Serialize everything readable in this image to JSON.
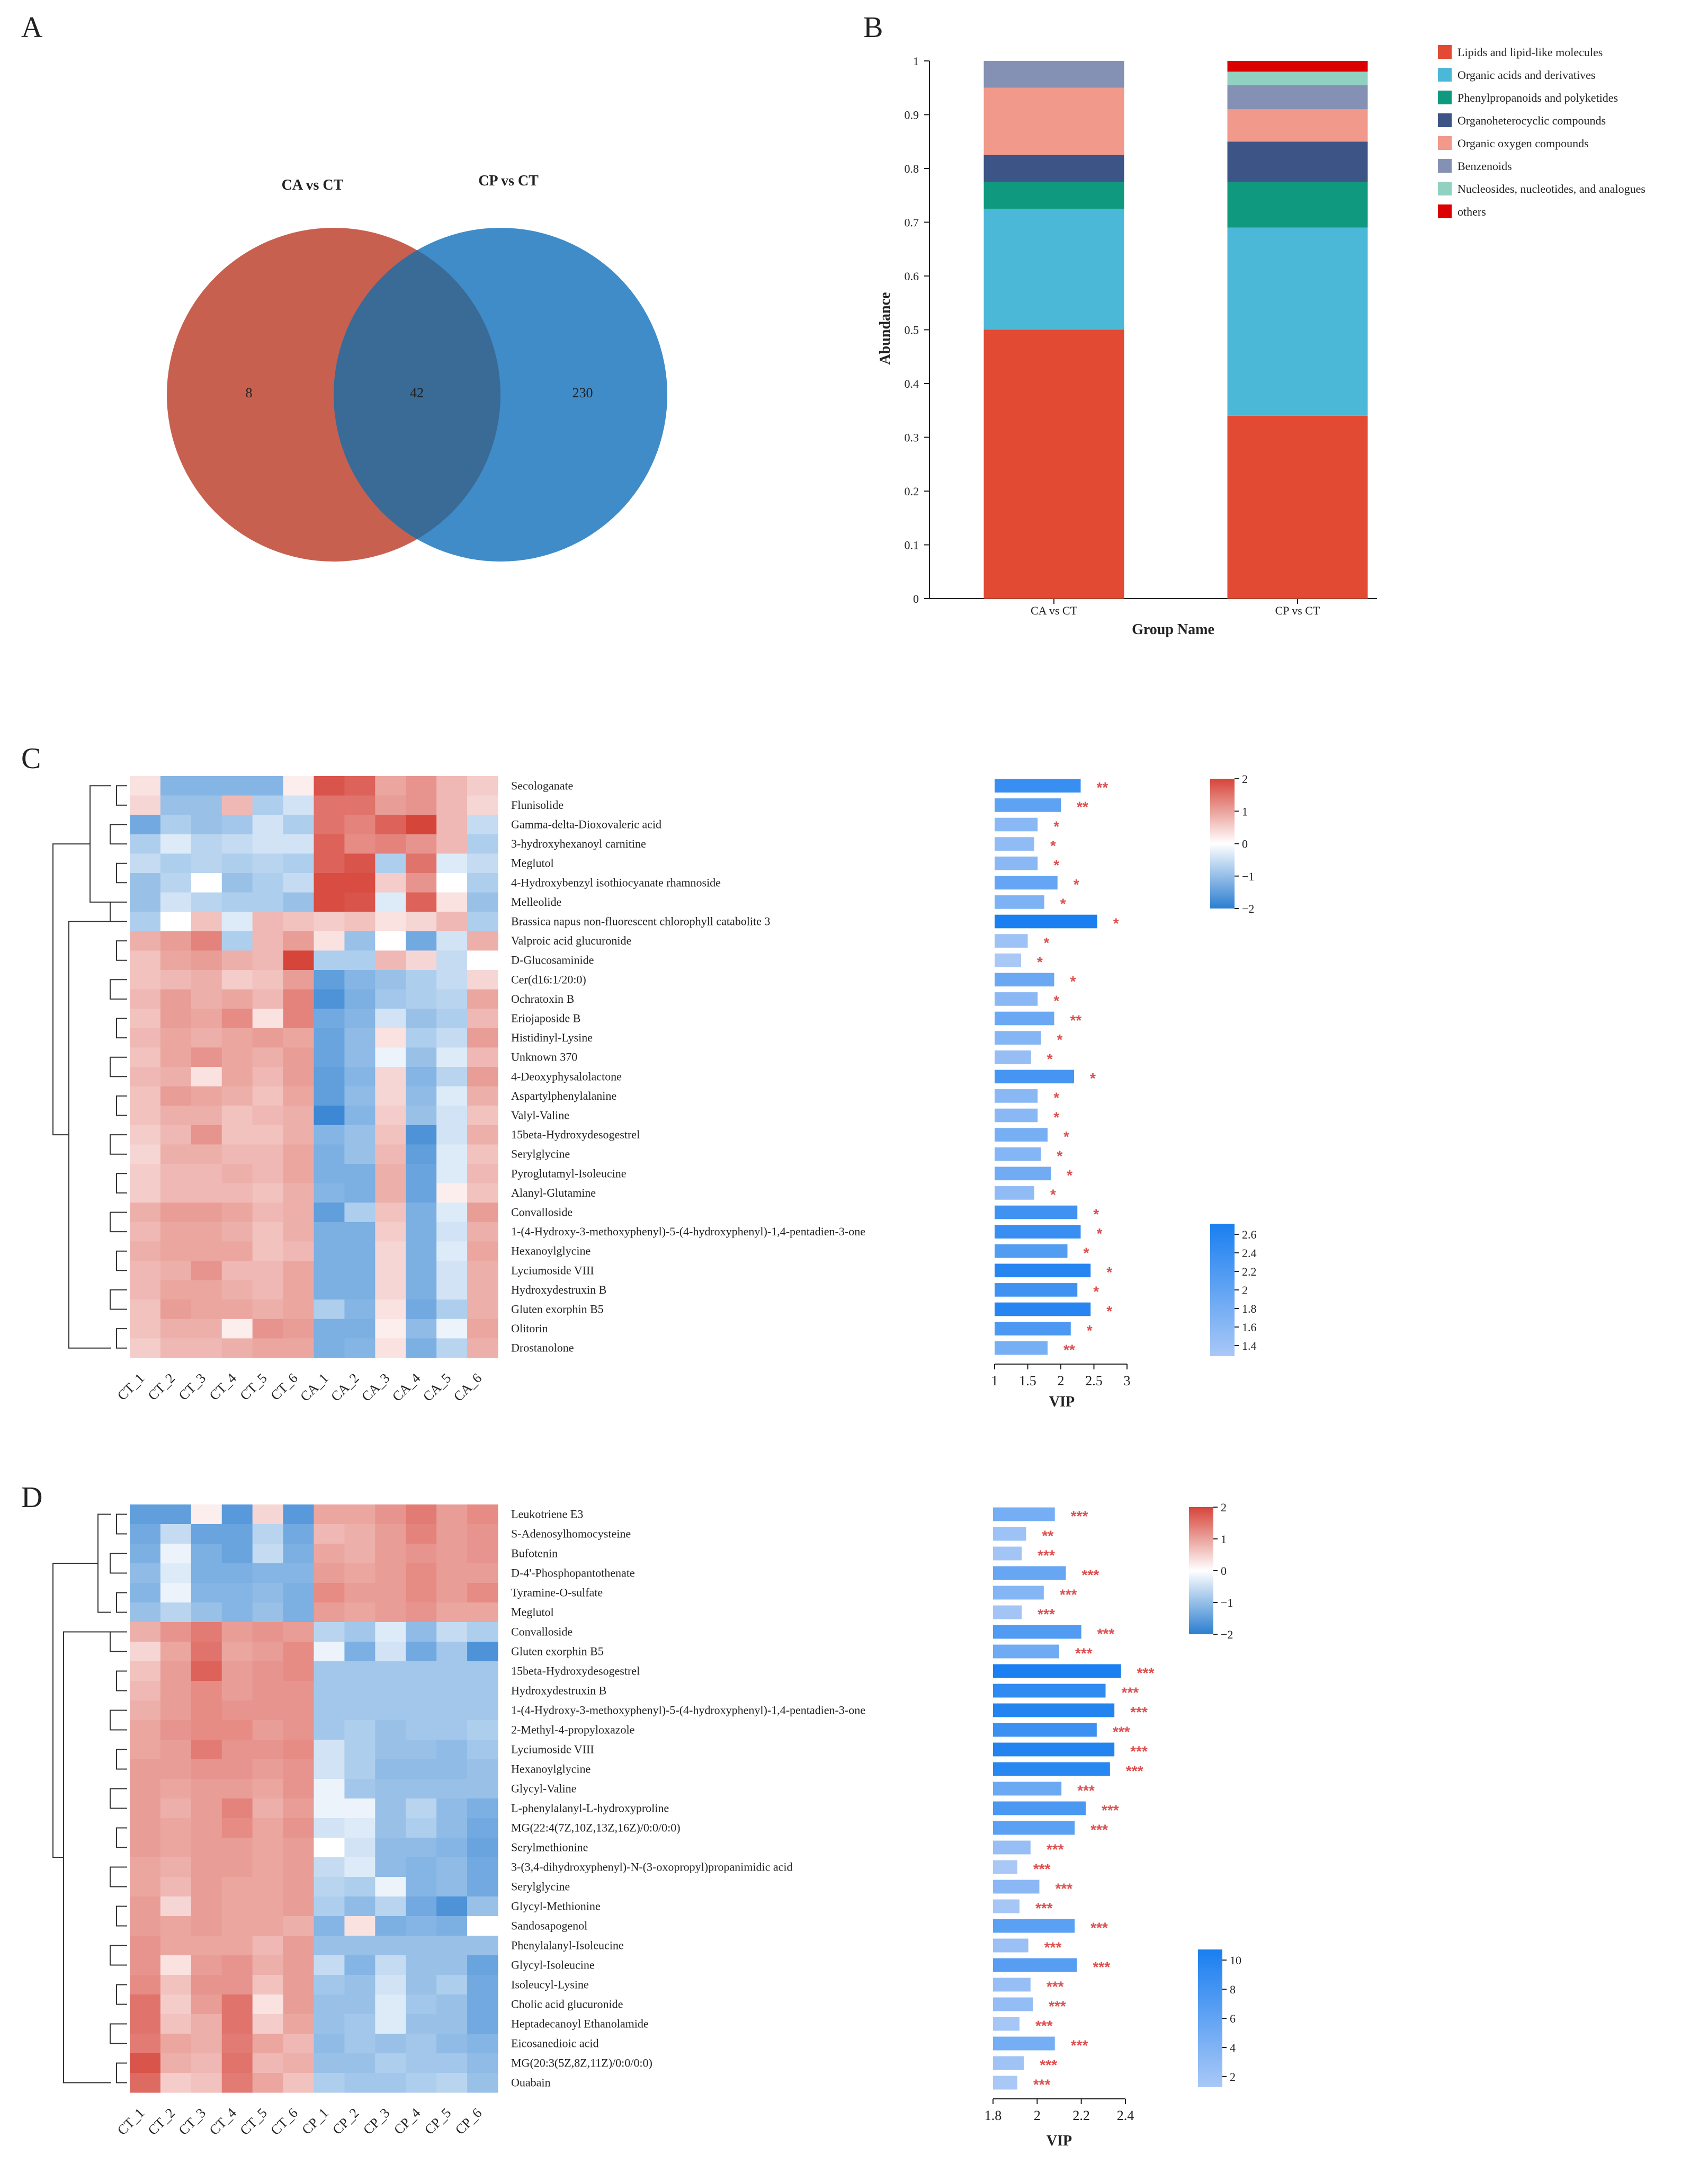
{
  "panels": {
    "a": "A",
    "b": "B",
    "c": "C",
    "d": "D"
  },
  "chart_data": [
    {
      "panel": "A",
      "type": "venn",
      "sets": [
        {
          "name": "CA vs CT",
          "only": 8,
          "color": "#c8604f"
        },
        {
          "name": "CP vs CT",
          "only": 230,
          "color": "#3f8cc8"
        }
      ],
      "intersection": 42
    },
    {
      "panel": "B",
      "type": "bar",
      "stacked": true,
      "categories": [
        "CA vs CT",
        "CP vs CT"
      ],
      "xlabel": "Group Name",
      "ylabel": "Abundance",
      "ylim": [
        0,
        1
      ],
      "yticks": [
        "0",
        "0.1",
        "0.2",
        "0.3",
        "0.4",
        "0.5",
        "0.6",
        "0.7",
        "0.8",
        "0.9",
        "1"
      ],
      "series": [
        {
          "name": "Lipids and lipid-like molecules",
          "color": "#e24a33",
          "values": [
            0.5,
            0.34
          ]
        },
        {
          "name": "Organic acids and derivatives",
          "color": "#4cb8d8",
          "values": [
            0.225,
            0.35
          ]
        },
        {
          "name": "Phenylpropanoids and polyketides",
          "color": "#0f9a80",
          "values": [
            0.05,
            0.085
          ]
        },
        {
          "name": "Organoheterocyclic compounds",
          "color": "#3c5486",
          "values": [
            0.05,
            0.075
          ]
        },
        {
          "name": "Organic oxygen compounds",
          "color": "#f1998a",
          "values": [
            0.125,
            0.06
          ]
        },
        {
          "name": "Benzenoids",
          "color": "#8491b4",
          "values": [
            0.05,
            0.045
          ]
        },
        {
          "name": "Nucleosides, nucleotides, and analogues",
          "color": "#91d1c2",
          "values": [
            0,
            0.025
          ]
        },
        {
          "name": "others",
          "color": "#dc0000",
          "values": [
            0,
            0.02
          ]
        }
      ]
    },
    {
      "panel": "C",
      "type": "heatmap",
      "columns": [
        "CT_1",
        "CT_2",
        "CT_3",
        "CT_4",
        "CT_5",
        "CT_6",
        "CA_1",
        "CA_2",
        "CA_3",
        "CA_4",
        "CA_5",
        "CA_6"
      ],
      "rows": [
        "Secologanate",
        "Flunisolide",
        "Gamma-delta-Dioxovaleric acid",
        "3-hydroxyhexanoyl carnitine",
        "Meglutol",
        "4-Hydroxybenzyl isothiocyanate rhamnoside",
        "Melleolide",
        "Brassica napus non-fluorescent chlorophyll catabolite 3",
        "Valproic acid glucuronide",
        "D-Glucosaminide",
        "Cer(d16:1/20:0)",
        "Ochratoxin B",
        "Eriojaposide B",
        "Histidinyl-Lysine",
        "Unknown 370",
        "4-Deoxyphysalolactone",
        "Aspartylphenylalanine",
        "Valyl-Valine",
        "15beta-Hydroxydesogestrel",
        "Serylglycine",
        "Pyroglutamyl-Isoleucine",
        "Alanyl-Glutamine",
        "Convalloside",
        "1-(4-Hydroxy-3-methoxyphenyl)-5-(4-hydroxyphenyl)-1,4-pentadien-3-one",
        "Hexanoylglycine",
        "Lyciumoside VIII",
        "Hydroxydestruxin B",
        "Gluten exorphin B5",
        "Olitorin",
        "Drostanolone"
      ],
      "values": [
        [
          0.2,
          -1.0,
          -1.0,
          -1.0,
          -1.0,
          0.1,
          1.8,
          1.6,
          0.8,
          1.0,
          0.6,
          0.4
        ],
        [
          0.3,
          -0.8,
          -0.8,
          0.6,
          -0.6,
          -0.3,
          1.4,
          1.4,
          0.9,
          1.0,
          0.6,
          0.3
        ],
        [
          -1.2,
          -0.6,
          -0.8,
          -0.7,
          -0.3,
          -0.6,
          1.4,
          1.2,
          1.6,
          2.0,
          0.6,
          -0.4
        ],
        [
          -0.6,
          -0.2,
          -0.5,
          -0.4,
          -0.3,
          -0.3,
          1.6,
          1.1,
          1.2,
          1.0,
          0.6,
          -0.6
        ],
        [
          -0.4,
          -0.6,
          -0.5,
          -0.6,
          -0.5,
          -0.6,
          1.6,
          1.8,
          -0.6,
          1.4,
          -0.2,
          -0.4
        ],
        [
          -0.8,
          -0.5,
          0.0,
          -0.8,
          -0.6,
          -0.4,
          1.9,
          1.9,
          0.4,
          1.0,
          0.0,
          -0.6
        ],
        [
          -0.8,
          -0.3,
          -0.5,
          -0.6,
          -0.6,
          -0.8,
          1.9,
          1.8,
          -0.2,
          1.6,
          0.2,
          -0.8
        ],
        [
          -0.6,
          0.0,
          0.5,
          -0.2,
          0.6,
          0.5,
          0.4,
          0.5,
          0.2,
          0.3,
          0.6,
          -0.6
        ],
        [
          0.7,
          0.9,
          1.2,
          -0.6,
          0.6,
          0.9,
          0.2,
          -0.8,
          0.0,
          -1.2,
          -0.3,
          0.7
        ],
        [
          0.5,
          0.8,
          0.9,
          0.7,
          0.6,
          2.3,
          -0.6,
          -0.6,
          0.6,
          0.3,
          -0.4,
          0.0
        ],
        [
          0.5,
          0.6,
          0.7,
          0.4,
          0.5,
          0.9,
          -1.4,
          -1.0,
          -0.8,
          -0.6,
          -0.4,
          0.3
        ],
        [
          0.6,
          0.9,
          0.7,
          0.8,
          0.6,
          1.2,
          -1.6,
          -1.1,
          -0.7,
          -0.6,
          -0.5,
          0.8
        ],
        [
          0.5,
          0.9,
          0.8,
          1.1,
          0.2,
          1.2,
          -1.2,
          -1.0,
          -0.3,
          -0.8,
          -0.6,
          0.6
        ],
        [
          0.6,
          0.8,
          0.7,
          0.8,
          0.9,
          0.8,
          -1.3,
          -0.9,
          0.2,
          -0.6,
          -0.4,
          0.9
        ],
        [
          0.5,
          0.8,
          1.0,
          0.8,
          0.7,
          0.9,
          -1.3,
          -0.9,
          -0.1,
          -0.8,
          -0.2,
          0.6
        ],
        [
          0.6,
          0.7,
          0.2,
          0.8,
          0.6,
          0.9,
          -1.4,
          -1.0,
          0.3,
          -1.0,
          -0.5,
          0.9
        ],
        [
          0.5,
          0.9,
          0.8,
          0.7,
          0.5,
          0.8,
          -1.4,
          -0.9,
          0.3,
          -0.9,
          -0.2,
          0.7
        ],
        [
          0.5,
          0.7,
          0.7,
          0.5,
          0.6,
          0.7,
          -1.8,
          -1.0,
          0.4,
          -0.8,
          -0.3,
          0.5
        ],
        [
          0.4,
          0.6,
          1.0,
          0.5,
          0.5,
          0.7,
          -1.0,
          -0.8,
          0.5,
          -1.6,
          -0.3,
          0.7
        ],
        [
          0.3,
          0.7,
          0.7,
          0.6,
          0.6,
          0.8,
          -1.1,
          -0.8,
          0.6,
          -1.4,
          -0.2,
          0.5
        ],
        [
          0.4,
          0.6,
          0.6,
          0.7,
          0.6,
          0.8,
          -1.1,
          -1.1,
          0.7,
          -1.3,
          -0.2,
          0.6
        ],
        [
          0.4,
          0.6,
          0.6,
          0.6,
          0.5,
          0.7,
          -1.0,
          -1.1,
          0.7,
          -1.3,
          0.1,
          0.5
        ],
        [
          0.7,
          0.9,
          0.9,
          0.8,
          0.6,
          0.7,
          -1.4,
          -0.6,
          0.5,
          -1.1,
          -0.2,
          0.9
        ],
        [
          0.6,
          0.8,
          0.8,
          0.7,
          0.5,
          0.7,
          -1.1,
          -1.1,
          0.4,
          -1.1,
          -0.3,
          0.7
        ],
        [
          0.7,
          0.8,
          0.8,
          0.8,
          0.5,
          0.6,
          -1.1,
          -1.1,
          0.3,
          -1.1,
          -0.2,
          0.8
        ],
        [
          0.6,
          0.7,
          1.0,
          0.6,
          0.6,
          0.8,
          -1.1,
          -1.1,
          0.3,
          -1.1,
          -0.3,
          0.7
        ],
        [
          0.6,
          0.8,
          0.8,
          0.7,
          0.6,
          0.8,
          -1.1,
          -1.1,
          0.3,
          -1.1,
          -0.3,
          0.7
        ],
        [
          0.5,
          0.9,
          0.8,
          0.8,
          0.7,
          0.8,
          -0.6,
          -1.0,
          0.2,
          -1.2,
          -0.6,
          0.7
        ],
        [
          0.5,
          0.7,
          0.7,
          0.1,
          1.0,
          0.9,
          -1.1,
          -1.1,
          0.1,
          -0.9,
          -0.1,
          0.8
        ],
        [
          0.4,
          0.6,
          0.6,
          0.7,
          0.8,
          0.8,
          -1.1,
          -1.0,
          0.2,
          -1.1,
          -0.5,
          0.7
        ]
      ],
      "color_scale": {
        "min": -2,
        "max": 2,
        "ticks": [
          "2",
          "1",
          "0",
          "−1",
          "−2"
        ]
      },
      "vip": [
        2.3,
        2.0,
        1.65,
        1.6,
        1.65,
        1.95,
        1.75,
        2.55,
        1.5,
        1.4,
        1.9,
        1.65,
        1.9,
        1.7,
        1.55,
        2.2,
        1.65,
        1.65,
        1.8,
        1.7,
        1.85,
        1.6,
        2.25,
        2.3,
        2.1,
        2.45,
        2.25,
        2.45,
        2.15,
        1.8
      ],
      "significance": [
        "**",
        "**",
        "*",
        "*",
        "*",
        "*",
        "*",
        "*",
        "*",
        "*",
        "*",
        "*",
        "**",
        "*",
        "*",
        "*",
        "*",
        "*",
        "*",
        "*",
        "*",
        "*",
        "*",
        "*",
        "*",
        "*",
        "*",
        "*",
        "*",
        "**"
      ],
      "vip_axis": {
        "label": "VIP",
        "min": 1,
        "max": 3,
        "ticks": [
          "1",
          "1.5",
          "2",
          "2.5",
          "3"
        ]
      },
      "vip_scale": {
        "ticks": [
          "2.6",
          "2.4",
          "2.2",
          "2",
          "1.8",
          "1.6",
          "1.4"
        ]
      }
    },
    {
      "panel": "D",
      "type": "heatmap",
      "columns": [
        "CT_1",
        "CT_2",
        "CT_3",
        "CT_4",
        "CT_5",
        "CT_6",
        "CP_1",
        "CP_2",
        "CP_3",
        "CP_4",
        "CP_5",
        "CP_6"
      ],
      "rows": [
        "Leukotriene E3",
        "S-Adenosylhomocysteine",
        "Bufotenin",
        "D-4'-Phosphopantothenate",
        "Tyramine-O-sulfate",
        "Meglutol",
        "Convalloside",
        "Gluten exorphin B5",
        "15beta-Hydroxydesogestrel",
        "Hydroxydestruxin B",
        "1-(4-Hydroxy-3-methoxyphenyl)-5-(4-hydroxyphenyl)-1,4-pentadien-3-one",
        "2-Methyl-4-propyloxazole",
        "Lyciumoside VIII",
        "Hexanoylglycine",
        "Glycyl-Valine",
        "L-phenylalanyl-L-hydroxyproline",
        "MG(22:4(7Z,10Z,13Z,16Z)/0:0/0:0)",
        "Serylmethionine",
        "3-(3,4-dihydroxyphenyl)-N-(3-oxopropyl)propanimidic acid",
        "Serylglycine",
        "Glycyl-Methionine",
        "Sandosapogenol",
        "Phenylalanyl-Isoleucine",
        "Glycyl-Isoleucine",
        "Isoleucyl-Lysine",
        "Cholic acid glucuronide",
        "Heptadecanoyl Ethanolamide",
        "Eicosanedioic acid",
        "MG(20:3(5Z,8Z,11Z)/0:0/0:0)",
        "Ouabain"
      ],
      "values": [
        [
          -1.4,
          -1.4,
          0.1,
          -1.5,
          0.3,
          -1.5,
          0.8,
          0.8,
          1.0,
          1.3,
          0.9,
          1.1
        ],
        [
          -1.2,
          -0.4,
          -1.3,
          -1.3,
          -0.5,
          -1.2,
          0.6,
          0.7,
          0.9,
          1.2,
          0.9,
          1.0
        ],
        [
          -1.1,
          -0.1,
          -1.1,
          -1.3,
          -0.4,
          -1.1,
          0.8,
          0.7,
          0.9,
          1.0,
          0.9,
          1.0
        ],
        [
          -0.9,
          -0.2,
          -1.1,
          -1.1,
          -1.0,
          -1.0,
          0.9,
          0.8,
          0.9,
          1.1,
          0.9,
          0.9
        ],
        [
          -1.0,
          -0.1,
          -1.0,
          -1.0,
          -0.9,
          -1.1,
          1.1,
          0.9,
          0.9,
          1.1,
          0.9,
          1.1
        ],
        [
          -0.8,
          -0.5,
          -0.8,
          -1.0,
          -0.8,
          -1.1,
          0.9,
          0.8,
          0.9,
          1.0,
          0.8,
          0.8
        ],
        [
          0.7,
          1.0,
          1.3,
          0.9,
          1.0,
          0.9,
          -0.5,
          -0.7,
          -0.2,
          -0.9,
          -0.4,
          -0.6
        ],
        [
          0.3,
          0.8,
          1.4,
          0.8,
          0.9,
          1.1,
          -0.1,
          -1.1,
          -0.3,
          -1.2,
          -0.7,
          -1.6
        ],
        [
          0.5,
          0.9,
          1.6,
          0.9,
          1.0,
          1.1,
          -0.7,
          -0.7,
          -0.7,
          -0.7,
          -0.7,
          -0.7
        ],
        [
          0.6,
          0.9,
          1.1,
          0.9,
          1.0,
          1.0,
          -0.7,
          -0.7,
          -0.7,
          -0.7,
          -0.7,
          -0.7
        ],
        [
          0.7,
          0.9,
          1.1,
          1.0,
          1.0,
          1.0,
          -0.7,
          -0.7,
          -0.7,
          -0.7,
          -0.7,
          -0.7
        ],
        [
          0.8,
          1.0,
          1.1,
          1.1,
          0.9,
          1.0,
          -0.7,
          -0.6,
          -0.8,
          -0.7,
          -0.7,
          -0.6
        ],
        [
          0.8,
          0.9,
          1.3,
          1.0,
          1.0,
          1.1,
          -0.3,
          -0.6,
          -0.8,
          -0.8,
          -0.9,
          -0.7
        ],
        [
          0.9,
          0.9,
          1.0,
          1.0,
          0.9,
          1.0,
          -0.3,
          -0.6,
          -0.9,
          -0.9,
          -0.9,
          -0.8
        ],
        [
          0.9,
          0.8,
          0.9,
          0.9,
          0.8,
          1.0,
          -0.1,
          -0.7,
          -0.8,
          -0.8,
          -0.8,
          -0.8
        ],
        [
          0.9,
          0.7,
          0.9,
          1.2,
          0.7,
          0.9,
          -0.1,
          -0.1,
          -0.8,
          -0.5,
          -0.9,
          -1.1
        ],
        [
          0.9,
          0.8,
          0.9,
          1.1,
          0.8,
          1.0,
          -0.3,
          -0.2,
          -0.8,
          -0.6,
          -0.9,
          -1.2
        ],
        [
          0.9,
          0.8,
          0.9,
          0.9,
          0.8,
          0.9,
          0.0,
          -0.3,
          -0.9,
          -0.9,
          -1.0,
          -1.3
        ],
        [
          0.8,
          0.7,
          0.9,
          0.9,
          0.8,
          0.9,
          -0.4,
          -0.2,
          -0.9,
          -1.0,
          -0.9,
          -1.2
        ],
        [
          0.8,
          0.6,
          0.9,
          0.8,
          0.8,
          0.9,
          -0.5,
          -0.6,
          -0.1,
          -1.0,
          -0.9,
          -1.2
        ],
        [
          0.9,
          0.3,
          0.9,
          0.8,
          0.8,
          0.9,
          -0.6,
          -0.9,
          -0.5,
          -1.2,
          -1.6,
          -0.8
        ],
        [
          0.9,
          0.8,
          0.9,
          0.8,
          0.8,
          0.7,
          -1.0,
          0.2,
          -1.1,
          -1.0,
          -1.1,
          0.0
        ],
        [
          1.0,
          0.8,
          0.8,
          0.8,
          0.6,
          0.9,
          -0.8,
          -0.8,
          -0.8,
          -0.8,
          -0.8,
          -0.8
        ],
        [
          1.0,
          0.2,
          0.9,
          1.0,
          0.7,
          0.9,
          -0.4,
          -1.0,
          -0.4,
          -0.8,
          -0.8,
          -1.3
        ],
        [
          1.1,
          0.5,
          1.0,
          1.0,
          0.5,
          0.9,
          -0.7,
          -0.8,
          -0.3,
          -0.8,
          -0.6,
          -1.2
        ],
        [
          1.4,
          0.4,
          0.9,
          1.4,
          0.2,
          0.9,
          -0.8,
          -0.8,
          -0.2,
          -0.7,
          -0.8,
          -1.2
        ],
        [
          1.4,
          0.5,
          0.7,
          1.4,
          0.4,
          0.8,
          -0.8,
          -0.7,
          -0.2,
          -0.8,
          -0.8,
          -1.2
        ],
        [
          1.3,
          0.8,
          0.7,
          1.3,
          0.8,
          0.6,
          -0.9,
          -0.7,
          -0.8,
          -0.7,
          -0.9,
          -1.0
        ],
        [
          1.8,
          0.7,
          0.6,
          1.4,
          0.6,
          0.7,
          -0.8,
          -0.8,
          -0.6,
          -0.7,
          -0.7,
          -0.9
        ],
        [
          1.5,
          0.4,
          0.5,
          1.3,
          0.8,
          0.5,
          -0.6,
          -0.7,
          -0.7,
          -0.6,
          -0.5,
          -0.8
        ]
      ],
      "color_scale": {
        "min": -2,
        "max": 2,
        "ticks": [
          "2",
          "1",
          "0",
          "−1",
          "−2"
        ]
      },
      "vip": [
        2.08,
        1.95,
        1.93,
        2.13,
        2.03,
        1.93,
        2.2,
        2.1,
        2.38,
        2.31,
        2.35,
        2.27,
        2.35,
        2.33,
        2.11,
        2.22,
        2.17,
        1.97,
        1.91,
        2.01,
        1.92,
        2.17,
        1.96,
        2.18,
        1.97,
        1.98,
        1.92,
        2.08,
        1.94,
        1.91
      ],
      "significance": [
        "***",
        "**",
        "***",
        "***",
        "***",
        "***",
        "***",
        "***",
        "***",
        "***",
        "***",
        "***",
        "***",
        "***",
        "***",
        "***",
        "***",
        "***",
        "***",
        "***",
        "***",
        "***",
        "***",
        "***",
        "***",
        "***",
        "***",
        "***",
        "***",
        "***"
      ],
      "vip_axis": {
        "label": "VIP",
        "min": 1.8,
        "max": 2.4,
        "ticks": [
          "1.8",
          "2",
          "2.2",
          "2.4"
        ]
      },
      "vip_scale": {
        "ticks": [
          "10",
          "8",
          "6",
          "4",
          "2"
        ]
      }
    }
  ]
}
